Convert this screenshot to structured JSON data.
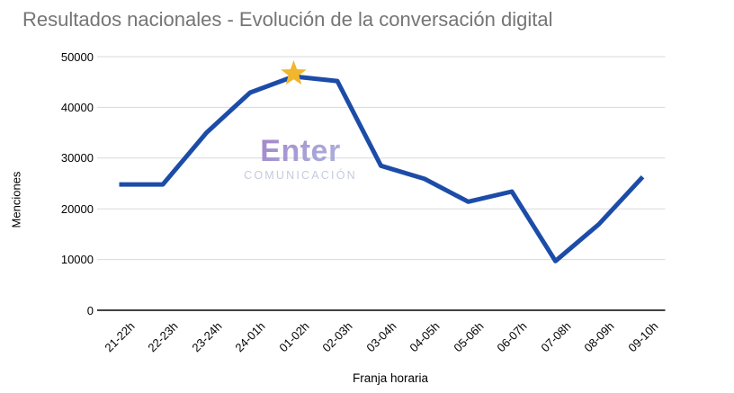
{
  "title": "Resultados nacionales - Evolución de la conversación digital",
  "watermark": {
    "brand": "Enter",
    "sub": "COMUNICACIÓN"
  },
  "colors": {
    "line": "#1c4ca8",
    "star": "#f1b52e",
    "title_gray": "#757575",
    "gridline": "#d9d9d9",
    "axis": "#424242",
    "watermark_purple": "#8f6cbe",
    "watermark_sub": "#c5cbdd"
  },
  "chart_data": {
    "type": "line",
    "title": "Resultados nacionales - Evolución de la conversación digital",
    "xlabel": "Franja horaria",
    "ylabel": "Menciones",
    "categories": [
      "21-22h",
      "22-23h",
      "23-24h",
      "24-01h",
      "01-02h",
      "02-03h",
      "03-04h",
      "04-05h",
      "05-06h",
      "06-07h",
      "07-08h",
      "08-09h",
      "09-10h"
    ],
    "values": [
      24800,
      24800,
      35000,
      42900,
      46100,
      45200,
      28500,
      25900,
      21400,
      23400,
      9700,
      17000,
      26300
    ],
    "series_name": "Menciones",
    "ylim": [
      0,
      50000
    ],
    "y_ticks": [
      0,
      10000,
      20000,
      30000,
      40000,
      50000
    ],
    "y_tick_labels": [
      "0",
      "10000",
      "20000",
      "30000",
      "40000",
      "50000"
    ],
    "grid": true,
    "legend": "none",
    "marker": {
      "type": "star",
      "category": "01-02h",
      "value": 46100,
      "color": "#f1b52e"
    }
  }
}
